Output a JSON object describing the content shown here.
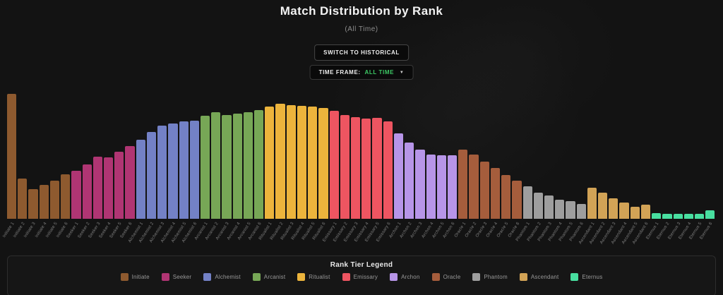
{
  "header": {
    "title": "Match Distribution by Rank",
    "subtitle": "(All Time)",
    "switch_button": "SWITCH TO HISTORICAL",
    "timeframe_label": "TIME FRAME:",
    "timeframe_value": "ALL TIME",
    "dropdown_icon": "▼"
  },
  "colors": {
    "background": "#131313",
    "accent_green": "#3dc965",
    "axis_label": "#818181",
    "legend_border": "#2d2d2d"
  },
  "legend": {
    "title": "Rank Tier Legend",
    "items": [
      {
        "label": "Initiate",
        "color": "#8e5a2f"
      },
      {
        "label": "Seeker",
        "color": "#b03573"
      },
      {
        "label": "Alchemist",
        "color": "#7381c6"
      },
      {
        "label": "Arcanist",
        "color": "#77a756"
      },
      {
        "label": "Ritualist",
        "color": "#ecb43c"
      },
      {
        "label": "Emissary",
        "color": "#ee5561"
      },
      {
        "label": "Archon",
        "color": "#b795e8"
      },
      {
        "label": "Oracle",
        "color": "#a55d3c"
      },
      {
        "label": "Phantom",
        "color": "#9e9e9e"
      },
      {
        "label": "Ascendant",
        "color": "#d2a356"
      },
      {
        "label": "Eternus",
        "color": "#48dfa0"
      }
    ]
  },
  "chart_data": {
    "type": "bar",
    "title": "Match Distribution by Rank",
    "subtitle": "(All Time)",
    "xlabel": "",
    "ylabel": "",
    "y_axis_shown": false,
    "units": "relative match count (no y-axis labels visible; values estimated from bar pixel heights)",
    "ylim": [
      0,
      185
    ],
    "grid": false,
    "legend_position": "bottom",
    "categories": [
      "Initiate 1",
      "Initiate 2",
      "Initiate 3",
      "Initiate 4",
      "Initiate 5",
      "Initiate 6",
      "Seeker 1",
      "Seeker 2",
      "Seeker 3",
      "Seeker 4",
      "Seeker 5",
      "Seeker 6",
      "Alchemist 1",
      "Alchemist 2",
      "Alchemist 3",
      "Alchemist 4",
      "Alchemist 5",
      "Alchemist 6",
      "Arcanist 1",
      "Arcanist 2",
      "Arcanist 3",
      "Arcanist 4",
      "Arcanist 5",
      "Arcanist 6",
      "Ritualist 1",
      "Ritualist 2",
      "Ritualist 3",
      "Ritualist 4",
      "Ritualist 5",
      "Ritualist 6",
      "Emissary 1",
      "Emissary 2",
      "Emissary 3",
      "Emissary 4",
      "Emissary 5",
      "Emissary 6",
      "Archon 1",
      "Archon 2",
      "Archon 3",
      "Archon 4",
      "Archon 5",
      "Archon 6",
      "Oracle 1",
      "Oracle 2",
      "Oracle 3",
      "Oracle 4",
      "Oracle 5",
      "Oracle 6",
      "Phantom 1",
      "Phantom 2",
      "Phantom 3",
      "Phantom 4",
      "Phantom 5",
      "Phantom 6",
      "Ascendant 1",
      "Ascendant 2",
      "Ascendant 3",
      "Ascendant 4",
      "Ascendant 5",
      "Ascendant 6",
      "Eternus 1",
      "Eternus 2",
      "Eternus 3",
      "Eternus 4",
      "Eternus 5",
      "Eternus 6"
    ],
    "series": [
      {
        "name": "Initiate",
        "color": "#8e5a2f",
        "values": [
          177,
          57,
          42,
          48,
          54,
          63
        ]
      },
      {
        "name": "Seeker",
        "color": "#b03573",
        "values": [
          68,
          77,
          88,
          87,
          95,
          103
        ]
      },
      {
        "name": "Alchemist",
        "color": "#7381c6",
        "values": [
          112,
          123,
          132,
          135,
          138,
          139
        ]
      },
      {
        "name": "Arcanist",
        "color": "#77a756",
        "values": [
          146,
          151,
          147,
          149,
          151,
          154
        ]
      },
      {
        "name": "Ritualist",
        "color": "#ecb43c",
        "values": [
          159,
          163,
          161,
          160,
          159,
          157
        ]
      },
      {
        "name": "Emissary",
        "color": "#ee5561",
        "values": [
          153,
          147,
          144,
          142,
          143,
          138
        ]
      },
      {
        "name": "Archon",
        "color": "#b795e8",
        "values": [
          121,
          108,
          98,
          91,
          90,
          90
        ]
      },
      {
        "name": "Oracle",
        "color": "#a55d3c",
        "values": [
          98,
          91,
          81,
          72,
          62,
          54
        ]
      },
      {
        "name": "Phantom",
        "color": "#9e9e9e",
        "values": [
          46,
          37,
          33,
          27,
          25,
          21
        ]
      },
      {
        "name": "Ascendant",
        "color": "#d2a356",
        "values": [
          44,
          37,
          29,
          23,
          17,
          20
        ]
      },
      {
        "name": "Eternus",
        "color": "#48dfa0",
        "values": [
          8,
          7,
          7,
          7,
          7,
          12
        ]
      }
    ]
  }
}
